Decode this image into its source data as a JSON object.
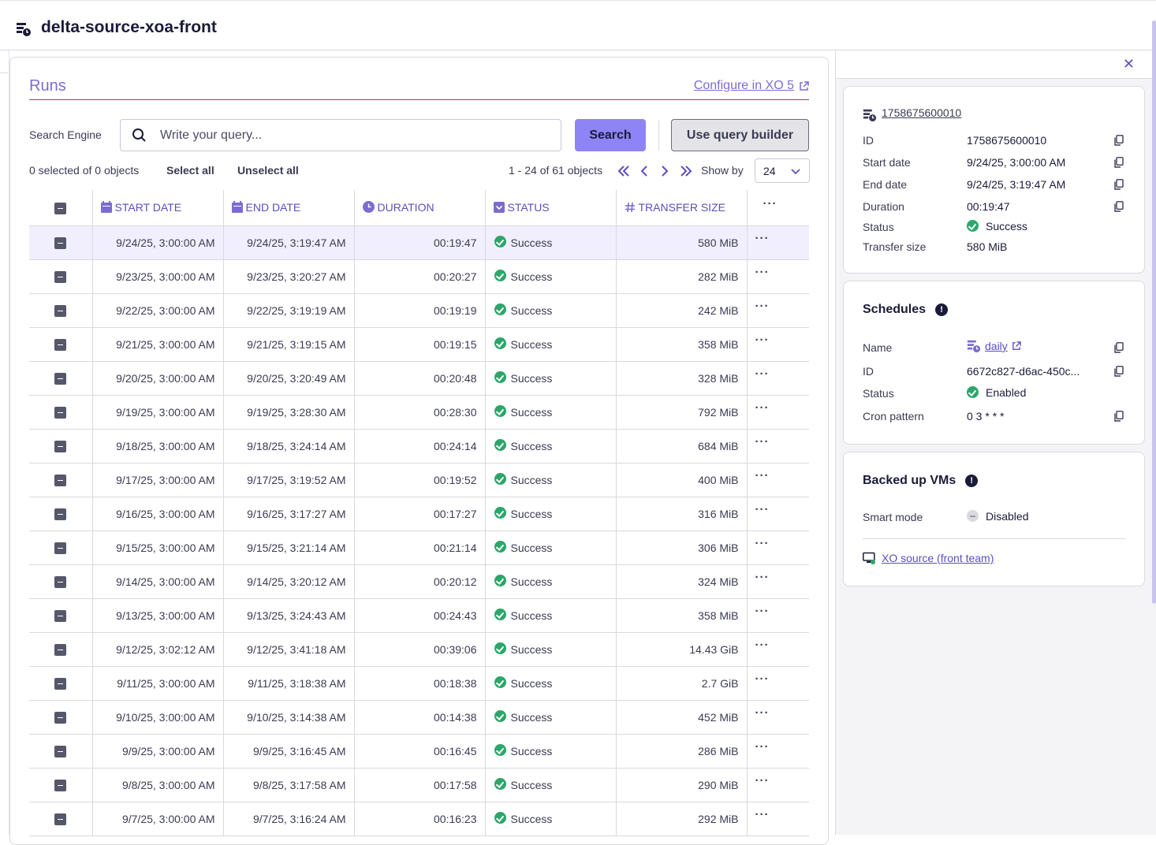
{
  "header": {
    "title": "delta-source-xoa-front",
    "icon": "backup-job-icon"
  },
  "runs": {
    "title": "Runs",
    "configure_label": "Configure in XO 5",
    "search_engine_label": "Search Engine",
    "search_placeholder": "Write your query...",
    "search_button": "Search",
    "query_builder_button": "Use query builder",
    "selection_info": "0 selected of 0 objects",
    "select_all": "Select all",
    "unselect_all": "Unselect all",
    "pagination": "1 - 24 of 61 objects",
    "show_by_label": "Show by",
    "show_by_value": "24",
    "columns": [
      "START DATE",
      "END DATE",
      "DURATION",
      "STATUS",
      "TRANSFER SIZE"
    ],
    "rows": [
      {
        "start": "9/24/25, 3:00:00 AM",
        "end": "9/24/25, 3:19:47 AM",
        "duration": "00:19:47",
        "status": "Success",
        "size": "580 MiB"
      },
      {
        "start": "9/23/25, 3:00:00 AM",
        "end": "9/23/25, 3:20:27 AM",
        "duration": "00:20:27",
        "status": "Success",
        "size": "282 MiB"
      },
      {
        "start": "9/22/25, 3:00:00 AM",
        "end": "9/22/25, 3:19:19 AM",
        "duration": "00:19:19",
        "status": "Success",
        "size": "242 MiB"
      },
      {
        "start": "9/21/25, 3:00:00 AM",
        "end": "9/21/25, 3:19:15 AM",
        "duration": "00:19:15",
        "status": "Success",
        "size": "358 MiB"
      },
      {
        "start": "9/20/25, 3:00:00 AM",
        "end": "9/20/25, 3:20:49 AM",
        "duration": "00:20:48",
        "status": "Success",
        "size": "328 MiB"
      },
      {
        "start": "9/19/25, 3:00:00 AM",
        "end": "9/19/25, 3:28:30 AM",
        "duration": "00:28:30",
        "status": "Success",
        "size": "792 MiB"
      },
      {
        "start": "9/18/25, 3:00:00 AM",
        "end": "9/18/25, 3:24:14 AM",
        "duration": "00:24:14",
        "status": "Success",
        "size": "684 MiB"
      },
      {
        "start": "9/17/25, 3:00:00 AM",
        "end": "9/17/25, 3:19:52 AM",
        "duration": "00:19:52",
        "status": "Success",
        "size": "400 MiB"
      },
      {
        "start": "9/16/25, 3:00:00 AM",
        "end": "9/16/25, 3:17:27 AM",
        "duration": "00:17:27",
        "status": "Success",
        "size": "316 MiB"
      },
      {
        "start": "9/15/25, 3:00:00 AM",
        "end": "9/15/25, 3:21:14 AM",
        "duration": "00:21:14",
        "status": "Success",
        "size": "306 MiB"
      },
      {
        "start": "9/14/25, 3:00:00 AM",
        "end": "9/14/25, 3:20:12 AM",
        "duration": "00:20:12",
        "status": "Success",
        "size": "324 MiB"
      },
      {
        "start": "9/13/25, 3:00:00 AM",
        "end": "9/13/25, 3:24:43 AM",
        "duration": "00:24:43",
        "status": "Success",
        "size": "358 MiB"
      },
      {
        "start": "9/12/25, 3:02:12 AM",
        "end": "9/12/25, 3:41:18 AM",
        "duration": "00:39:06",
        "status": "Success",
        "size": "14.43 GiB"
      },
      {
        "start": "9/11/25, 3:00:00 AM",
        "end": "9/11/25, 3:18:38 AM",
        "duration": "00:18:38",
        "status": "Success",
        "size": "2.7 GiB"
      },
      {
        "start": "9/10/25, 3:00:00 AM",
        "end": "9/10/25, 3:14:38 AM",
        "duration": "00:14:38",
        "status": "Success",
        "size": "452 MiB"
      },
      {
        "start": "9/9/25, 3:00:00 AM",
        "end": "9/9/25, 3:16:45 AM",
        "duration": "00:16:45",
        "status": "Success",
        "size": "286 MiB"
      },
      {
        "start": "9/8/25, 3:00:00 AM",
        "end": "9/8/25, 3:17:58 AM",
        "duration": "00:17:58",
        "status": "Success",
        "size": "290 MiB"
      },
      {
        "start": "9/7/25, 3:00:00 AM",
        "end": "9/7/25, 3:16:24 AM",
        "duration": "00:16:23",
        "status": "Success",
        "size": "292 MiB"
      }
    ]
  },
  "details": {
    "run_link": "1758675600010",
    "fields": [
      {
        "key": "ID",
        "value": "1758675600010"
      },
      {
        "key": "Start date",
        "value": "9/24/25, 3:00:00 AM"
      },
      {
        "key": "End date",
        "value": "9/24/25, 3:19:47 AM"
      },
      {
        "key": "Duration",
        "value": "00:19:47"
      },
      {
        "key": "Status",
        "value": "Success"
      },
      {
        "key": "Transfer size",
        "value": "580 MiB"
      }
    ]
  },
  "schedules": {
    "title": "Schedules",
    "name_key": "Name",
    "name_value": "daily",
    "id_key": "ID",
    "id_value": "6672c827-d6ac-450c...",
    "status_key": "Status",
    "status_value": "Enabled",
    "cron_key": "Cron pattern",
    "cron_value": "0 3 * * *"
  },
  "backed_up": {
    "title": "Backed up VMs",
    "smart_key": "Smart mode",
    "smart_value": "Disabled",
    "vm_link": "XO source (front team)"
  },
  "colors": {
    "accent": "#8f84f5",
    "link": "#5a4fc0",
    "success": "#2ca66a"
  }
}
